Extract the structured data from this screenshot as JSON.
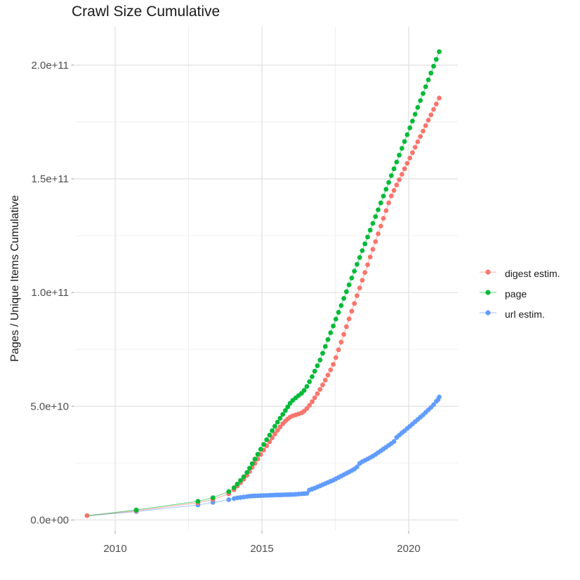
{
  "title": "Crawl Size Cumulative",
  "y_axis": {
    "label": "Pages / Unique Items Cumulative",
    "lim": [
      -4.5,
      216.9
    ],
    "unit": "1e9",
    "ticks": [
      {
        "value": 0,
        "label": "0.0e+00"
      },
      {
        "value": 50,
        "label": "5.0e+10"
      },
      {
        "value": 100,
        "label": "1.0e+11"
      },
      {
        "value": 150,
        "label": "1.5e+11"
      },
      {
        "value": 200,
        "label": "2.0e+11"
      }
    ],
    "minor": [
      25,
      75,
      125,
      175
    ]
  },
  "x_axis": {
    "lim": [
      2008.636,
      2021.675
    ],
    "ticks": [
      {
        "value": 2010,
        "label": "2010"
      },
      {
        "value": 2015,
        "label": "2015"
      },
      {
        "value": 2020,
        "label": "2020"
      }
    ],
    "minor": [
      2012.5,
      2017.5
    ]
  },
  "colors": {
    "grid_major": "#e2e2e2",
    "grid_minor": "#efefef",
    "tick_mark": "#b3b3b3",
    "tick_label": "#4d4d4d"
  },
  "legend": {
    "items": [
      {
        "label": "digest estim.",
        "color": "#F8766D"
      },
      {
        "label": "page",
        "color": "#00BA38"
      },
      {
        "label": "url estim.",
        "color": "#619CFF"
      }
    ]
  },
  "chart_data": {
    "type": "line",
    "mark": "point+line",
    "title": "Crawl Size Cumulative",
    "xlabel": "",
    "ylabel": "Pages / Unique Items Cumulative",
    "y_value_unit": "1e9 (values below are billions of pages / items)",
    "legend_position": "right",
    "grid": true,
    "series": [
      {
        "name": "digest estim.",
        "color": "#F8766D",
        "z": 2,
        "points": [
          [
            2009.04,
            1.9
          ],
          [
            2010.72,
            4.0
          ],
          [
            2012.82,
            7.6
          ],
          [
            2013.33,
            9.0
          ],
          [
            2013.87,
            11.5
          ],
          [
            2014.05,
            13.3
          ],
          [
            2014.16,
            14.9
          ],
          [
            2014.27,
            16.4
          ],
          [
            2014.38,
            17.9
          ],
          [
            2014.49,
            19.6
          ],
          [
            2014.58,
            21.3
          ],
          [
            2014.67,
            23.1
          ],
          [
            2014.76,
            24.9
          ],
          [
            2014.86,
            26.8
          ],
          [
            2014.96,
            28.8
          ],
          [
            2015.06,
            30.7
          ],
          [
            2015.16,
            32.6
          ],
          [
            2015.26,
            34.4
          ],
          [
            2015.35,
            36.1
          ],
          [
            2015.44,
            37.8
          ],
          [
            2015.53,
            39.4
          ],
          [
            2015.62,
            40.9
          ],
          [
            2015.71,
            42.3
          ],
          [
            2015.8,
            43.5
          ],
          [
            2015.88,
            44.4
          ],
          [
            2015.96,
            45.2
          ],
          [
            2016.05,
            45.8
          ],
          [
            2016.15,
            46.2
          ],
          [
            2016.25,
            46.6
          ],
          [
            2016.35,
            47.1
          ],
          [
            2016.44,
            47.9
          ],
          [
            2016.53,
            49.0
          ],
          [
            2016.62,
            50.4
          ],
          [
            2016.71,
            52.0
          ],
          [
            2016.8,
            53.7
          ],
          [
            2016.89,
            55.5
          ],
          [
            2016.98,
            57.4
          ],
          [
            2017.07,
            59.4
          ],
          [
            2017.16,
            61.5
          ],
          [
            2017.25,
            63.7
          ],
          [
            2017.34,
            66.0
          ],
          [
            2017.43,
            68.4
          ],
          [
            2017.52,
            71.4
          ],
          [
            2017.61,
            74.8
          ],
          [
            2017.7,
            78.2
          ],
          [
            2017.79,
            81.6
          ],
          [
            2017.88,
            85.0
          ],
          [
            2017.97,
            88.4
          ],
          [
            2018.06,
            91.8
          ],
          [
            2018.15,
            95.2
          ],
          [
            2018.24,
            98.6
          ],
          [
            2018.33,
            102.0
          ],
          [
            2018.42,
            105.4
          ],
          [
            2018.51,
            108.8
          ],
          [
            2018.6,
            112.2
          ],
          [
            2018.69,
            115.6
          ],
          [
            2018.78,
            119.0
          ],
          [
            2018.87,
            122.4
          ],
          [
            2018.96,
            125.8
          ],
          [
            2019.05,
            129.2
          ],
          [
            2019.14,
            132.6
          ],
          [
            2019.23,
            136.0
          ],
          [
            2019.32,
            139.4
          ],
          [
            2019.41,
            142.5
          ],
          [
            2019.5,
            144.9
          ],
          [
            2019.59,
            147.3
          ],
          [
            2019.68,
            149.6
          ],
          [
            2019.77,
            152.0
          ],
          [
            2019.86,
            154.4
          ],
          [
            2019.95,
            156.8
          ],
          [
            2020.04,
            159.1
          ],
          [
            2020.13,
            161.5
          ],
          [
            2020.22,
            163.9
          ],
          [
            2020.31,
            166.3
          ],
          [
            2020.4,
            168.6
          ],
          [
            2020.49,
            171.0
          ],
          [
            2020.58,
            173.4
          ],
          [
            2020.67,
            175.8
          ],
          [
            2020.76,
            178.1
          ],
          [
            2020.85,
            180.5
          ],
          [
            2020.94,
            182.9
          ],
          [
            2021.04,
            185.5
          ]
        ]
      },
      {
        "name": "page",
        "color": "#00BA38",
        "z": 3,
        "points": [
          [
            2009.04,
            1.85,
            0
          ],
          [
            2010.72,
            4.4
          ],
          [
            2012.82,
            8.2
          ],
          [
            2013.33,
            9.8
          ],
          [
            2013.87,
            12.5
          ],
          [
            2014.05,
            14.2
          ],
          [
            2014.16,
            15.8
          ],
          [
            2014.27,
            17.4
          ],
          [
            2014.38,
            19.0
          ],
          [
            2014.49,
            20.9
          ],
          [
            2014.58,
            22.8
          ],
          [
            2014.67,
            24.8
          ],
          [
            2014.76,
            26.8
          ],
          [
            2014.86,
            28.9
          ],
          [
            2014.96,
            31.1
          ],
          [
            2015.06,
            33.2
          ],
          [
            2015.16,
            35.3
          ],
          [
            2015.26,
            37.3
          ],
          [
            2015.35,
            39.3
          ],
          [
            2015.44,
            41.2
          ],
          [
            2015.53,
            43.0
          ],
          [
            2015.62,
            44.7
          ],
          [
            2015.71,
            46.4
          ],
          [
            2015.8,
            48.1
          ],
          [
            2015.88,
            49.7
          ],
          [
            2015.96,
            51.3
          ],
          [
            2016.05,
            52.6
          ],
          [
            2016.15,
            53.7
          ],
          [
            2016.25,
            54.7
          ],
          [
            2016.35,
            55.7
          ],
          [
            2016.44,
            57.0
          ],
          [
            2016.53,
            58.7
          ],
          [
            2016.62,
            60.8
          ],
          [
            2016.71,
            63.0
          ],
          [
            2016.8,
            65.4
          ],
          [
            2016.89,
            67.8
          ],
          [
            2016.98,
            70.3
          ],
          [
            2017.07,
            73.3
          ],
          [
            2017.16,
            76.3
          ],
          [
            2017.25,
            79.3
          ],
          [
            2017.34,
            82.3
          ],
          [
            2017.43,
            85.3
          ],
          [
            2017.52,
            88.3
          ],
          [
            2017.61,
            91.3
          ],
          [
            2017.7,
            94.3
          ],
          [
            2017.79,
            97.4
          ],
          [
            2017.88,
            100.4
          ],
          [
            2017.97,
            103.4
          ],
          [
            2018.06,
            106.4
          ],
          [
            2018.15,
            109.4
          ],
          [
            2018.24,
            112.4
          ],
          [
            2018.33,
            115.4
          ],
          [
            2018.42,
            118.4
          ],
          [
            2018.51,
            121.4
          ],
          [
            2018.6,
            124.4
          ],
          [
            2018.69,
            127.4
          ],
          [
            2018.78,
            130.4
          ],
          [
            2018.87,
            133.4
          ],
          [
            2018.96,
            136.4
          ],
          [
            2019.05,
            139.4
          ],
          [
            2019.14,
            142.4
          ],
          [
            2019.23,
            145.4
          ],
          [
            2019.32,
            148.4
          ],
          [
            2019.41,
            151.4
          ],
          [
            2019.5,
            154.4
          ],
          [
            2019.59,
            157.4
          ],
          [
            2019.68,
            160.4
          ],
          [
            2019.77,
            163.4
          ],
          [
            2019.86,
            166.4
          ],
          [
            2019.95,
            169.4
          ],
          [
            2020.04,
            172.4
          ],
          [
            2020.13,
            175.4
          ],
          [
            2020.22,
            178.4
          ],
          [
            2020.31,
            181.4
          ],
          [
            2020.4,
            184.4
          ],
          [
            2020.49,
            187.5
          ],
          [
            2020.58,
            190.5
          ],
          [
            2020.67,
            193.5
          ],
          [
            2020.76,
            196.5
          ],
          [
            2020.85,
            199.5
          ],
          [
            2020.94,
            202.5
          ],
          [
            2021.04,
            205.9
          ]
        ]
      },
      {
        "name": "url estim.",
        "color": "#619CFF",
        "z": 1,
        "points": [
          [
            2009.04,
            1.8,
            0
          ],
          [
            2010.72,
            3.7
          ],
          [
            2012.82,
            6.6
          ],
          [
            2013.33,
            7.7
          ],
          [
            2013.87,
            8.9
          ],
          [
            2014.05,
            9.4
          ],
          [
            2014.16,
            9.7
          ],
          [
            2014.27,
            9.9
          ],
          [
            2014.38,
            10.1
          ],
          [
            2014.49,
            10.3
          ],
          [
            2014.58,
            10.45
          ],
          [
            2014.67,
            10.55
          ],
          [
            2014.76,
            10.6
          ],
          [
            2014.86,
            10.65
          ],
          [
            2014.96,
            10.7
          ],
          [
            2015.06,
            10.75
          ],
          [
            2015.16,
            10.8
          ],
          [
            2015.26,
            10.85
          ],
          [
            2015.35,
            10.9
          ],
          [
            2015.44,
            10.95
          ],
          [
            2015.53,
            11.0
          ],
          [
            2015.62,
            11.0
          ],
          [
            2015.71,
            11.05
          ],
          [
            2015.8,
            11.1
          ],
          [
            2015.88,
            11.1
          ],
          [
            2015.96,
            11.15
          ],
          [
            2016.05,
            11.2
          ],
          [
            2016.15,
            11.3
          ],
          [
            2016.25,
            11.4
          ],
          [
            2016.35,
            11.5
          ],
          [
            2016.44,
            11.6
          ],
          [
            2016.53,
            11.7
          ],
          [
            2016.62,
            13.2
          ],
          [
            2016.71,
            13.6
          ],
          [
            2016.8,
            14.0
          ],
          [
            2016.89,
            14.5
          ],
          [
            2016.98,
            15.0
          ],
          [
            2017.07,
            15.5
          ],
          [
            2017.16,
            16.0
          ],
          [
            2017.25,
            16.5
          ],
          [
            2017.34,
            17.0
          ],
          [
            2017.43,
            17.5
          ],
          [
            2017.52,
            18.1
          ],
          [
            2017.61,
            18.7
          ],
          [
            2017.7,
            19.3
          ],
          [
            2017.79,
            19.9
          ],
          [
            2017.88,
            20.5
          ],
          [
            2017.97,
            21.1
          ],
          [
            2018.06,
            21.7
          ],
          [
            2018.15,
            22.4
          ],
          [
            2018.24,
            23.3
          ],
          [
            2018.33,
            24.9
          ],
          [
            2018.42,
            25.6
          ],
          [
            2018.51,
            26.2
          ],
          [
            2018.6,
            26.8
          ],
          [
            2018.69,
            27.4
          ],
          [
            2018.78,
            28.1
          ],
          [
            2018.87,
            28.8
          ],
          [
            2018.96,
            29.6
          ],
          [
            2019.05,
            30.4
          ],
          [
            2019.14,
            31.2
          ],
          [
            2019.23,
            32.0
          ],
          [
            2019.32,
            32.8
          ],
          [
            2019.41,
            33.6
          ],
          [
            2019.5,
            34.5
          ],
          [
            2019.59,
            36.3
          ],
          [
            2019.68,
            37.3
          ],
          [
            2019.77,
            38.3
          ],
          [
            2019.86,
            39.2
          ],
          [
            2019.95,
            40.2
          ],
          [
            2020.04,
            41.2
          ],
          [
            2020.13,
            42.2
          ],
          [
            2020.22,
            43.2
          ],
          [
            2020.31,
            44.2
          ],
          [
            2020.4,
            45.2
          ],
          [
            2020.49,
            46.2
          ],
          [
            2020.58,
            47.3
          ],
          [
            2020.67,
            48.4
          ],
          [
            2020.76,
            49.5
          ],
          [
            2020.85,
            50.7
          ],
          [
            2020.94,
            52.1
          ],
          [
            2021.0,
            52.9
          ],
          [
            2021.04,
            54.1
          ]
        ]
      }
    ]
  }
}
